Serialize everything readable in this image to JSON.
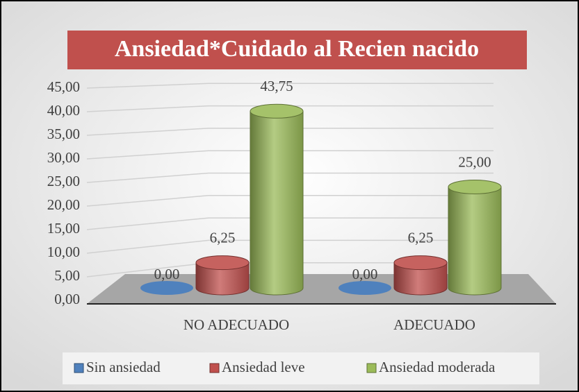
{
  "chart_data": {
    "type": "bar3d",
    "title": "Ansiedad*Cuidado al Recien nacido",
    "categories": [
      "NO ADECUADO",
      "ADECUADO"
    ],
    "series": [
      {
        "name": "Sin ansiedad",
        "color": "#4f81bd",
        "values": [
          0,
          0
        ],
        "value_labels": [
          "0,00",
          "0,00"
        ]
      },
      {
        "name": "Ansiedad leve",
        "color": "#c0504d",
        "values": [
          6.25,
          6.25
        ],
        "value_labels": [
          "6,25",
          "6,25"
        ]
      },
      {
        "name": "Ansiedad moderada",
        "color": "#9bbb59",
        "values": [
          43.75,
          25
        ],
        "value_labels": [
          "43,75",
          "25,00"
        ]
      }
    ],
    "ylim": [
      0,
      45
    ],
    "yticks": [
      {
        "value": 0,
        "label": "0,00"
      },
      {
        "value": 5,
        "label": "5,00"
      },
      {
        "value": 10,
        "label": "10,00"
      },
      {
        "value": 15,
        "label": "15,00"
      },
      {
        "value": 20,
        "label": "20,00"
      },
      {
        "value": 25,
        "label": "25,00"
      },
      {
        "value": 30,
        "label": "30,00"
      },
      {
        "value": 35,
        "label": "35,00"
      },
      {
        "value": 40,
        "label": "40,00"
      },
      {
        "value": 45,
        "label": "45,00"
      }
    ],
    "grid": true,
    "legend": "bottom"
  }
}
